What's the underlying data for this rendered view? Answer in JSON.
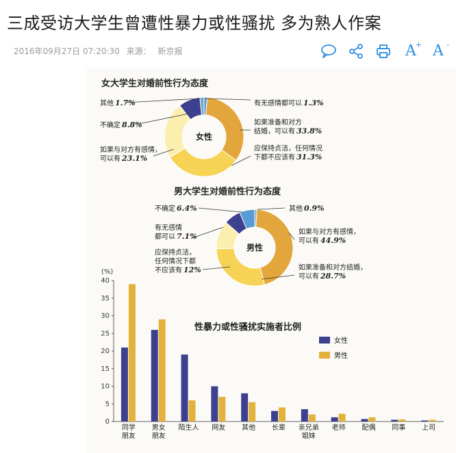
{
  "article": {
    "title": "三成受访大学生曾遭性暴力或性骚扰 多为熟人作案",
    "date": "2016年09月27日 07:20:30",
    "source_label": "来源：",
    "source": "新京报"
  },
  "toolbar": {
    "icons": [
      "comment-icon",
      "share-icon",
      "print-icon",
      "font-increase-icon",
      "font-decrease-icon"
    ],
    "font_up_label": "A",
    "font_up_sup": "+",
    "font_down_label": "A",
    "font_down_sup": "-"
  },
  "colors": {
    "accent": "#2c8ce0",
    "female": "#3d3f8f",
    "male": "#e3b23c"
  },
  "chart_data": [
    {
      "type": "pie",
      "title": "女大学生对婚前性行为态度",
      "center_label": "女性",
      "slices": [
        {
          "label": "有无感情都可以",
          "value": 1.3,
          "value_label": "1.3%",
          "color": "#5b9bd5",
          "callout": [
            "有无感情都可以"
          ]
        },
        {
          "label": "如果准备和对方结婚，可以有",
          "value": 33.8,
          "value_label": "33.8%",
          "color": "#e3a63c",
          "callout": [
            "如果准备和对方",
            "结婚，可以有"
          ]
        },
        {
          "label": "应保持贞洁，任何情况下都不应该有",
          "value": 31.3,
          "value_label": "31.3%",
          "color": "#f6d255",
          "callout": [
            "应保持贞洁，任何情况",
            "下都不应该有"
          ]
        },
        {
          "label": "如果与对方有感情，可以有",
          "value": 23.1,
          "value_label": "23.1%",
          "color": "#fbefb0",
          "callout": [
            "如果与对方有感情，",
            "可以有"
          ]
        },
        {
          "label": "不确定",
          "value": 8.8,
          "value_label": "8.8%",
          "color": "#3d3f8f",
          "callout": [
            "不确定"
          ]
        },
        {
          "label": "其他",
          "value": 1.7,
          "value_label": "1.7%",
          "color": "#7aa6c8",
          "callout": [
            "其他"
          ]
        }
      ]
    },
    {
      "type": "pie",
      "title": "男大学生对婚前性行为态度",
      "center_label": "男性",
      "slices": [
        {
          "label": "其他",
          "value": 0.9,
          "value_label": "0.9%",
          "color": "#7aa6c8",
          "callout": [
            "其他"
          ]
        },
        {
          "label": "如果与对方有感情，可以有",
          "value": 44.9,
          "value_label": "44.9%",
          "color": "#e3a63c",
          "callout": [
            "如果与对方有感情，",
            "可以有"
          ]
        },
        {
          "label": "如果准备和对方结婚，可以有",
          "value": 28.7,
          "value_label": "28.7%",
          "color": "#f6d255",
          "callout": [
            "如果准备和对方结婚，",
            "可以有"
          ]
        },
        {
          "label": "应保持贞洁，任何情况下都不应该有",
          "value": 12,
          "value_label": "12%",
          "color": "#fbefb0",
          "callout": [
            "应保持贞洁，",
            "任何情况下都",
            "不应该有"
          ]
        },
        {
          "label": "有无感情都可以",
          "value": 7.1,
          "value_label": "7.1%",
          "color": "#3d3f8f",
          "callout": [
            "有无感情",
            "都可以"
          ]
        },
        {
          "label": "不确定",
          "value": 6.4,
          "value_label": "6.4%",
          "color": "#5b9bd5",
          "callout": [
            "不确定"
          ]
        }
      ]
    },
    {
      "type": "bar",
      "title": "性暴力或性骚扰实施者比例",
      "ylabel": "(%)",
      "ylim": [
        0,
        40
      ],
      "yticks": [
        0,
        5,
        10,
        15,
        20,
        25,
        30,
        35,
        40
      ],
      "legend_position": "right",
      "categories": [
        [
          "同学",
          "朋友"
        ],
        [
          "男女",
          "朋友"
        ],
        [
          "陌生人"
        ],
        [
          "网友"
        ],
        [
          "其他"
        ],
        [
          "长辈"
        ],
        [
          "亲兄弟",
          "姐妹"
        ],
        [
          "老师"
        ],
        [
          "配偶"
        ],
        [
          "同事"
        ],
        [
          "上司"
        ]
      ],
      "series": [
        {
          "name": "女性",
          "color": "#3d3f8f",
          "values": [
            21,
            26,
            19,
            10,
            8,
            3,
            3.5,
            1.2,
            0.7,
            0.5,
            0.3
          ]
        },
        {
          "name": "男性",
          "color": "#e3b23c",
          "values": [
            39,
            29,
            6,
            7,
            5.5,
            4,
            2,
            2.2,
            1.2,
            0.6,
            0.5
          ]
        }
      ]
    }
  ]
}
